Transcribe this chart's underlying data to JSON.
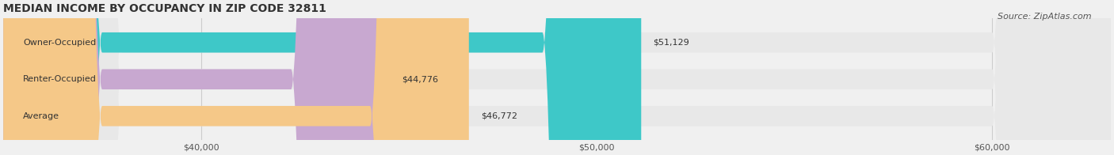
{
  "title": "MEDIAN INCOME BY OCCUPANCY IN ZIP CODE 32811",
  "source": "Source: ZipAtlas.com",
  "categories": [
    "Owner-Occupied",
    "Renter-Occupied",
    "Average"
  ],
  "values": [
    51129,
    44776,
    46772
  ],
  "labels": [
    "$51,129",
    "$44,776",
    "$46,772"
  ],
  "bar_colors": [
    "#3ec8c8",
    "#c8a8d0",
    "#f5c888"
  ],
  "bar_edge_colors": [
    "#3ec8c8",
    "#c8a8d0",
    "#f5c888"
  ],
  "x_min": 35000,
  "x_max": 63000,
  "x_ticks": [
    40000,
    50000,
    60000
  ],
  "x_tick_labels": [
    "$40,000",
    "$50,000",
    "$60,000"
  ],
  "background_color": "#f0f0f0",
  "bar_background_color": "#e8e8e8",
  "title_fontsize": 10,
  "source_fontsize": 8,
  "label_fontsize": 8,
  "tick_fontsize": 8,
  "bar_height": 0.55
}
